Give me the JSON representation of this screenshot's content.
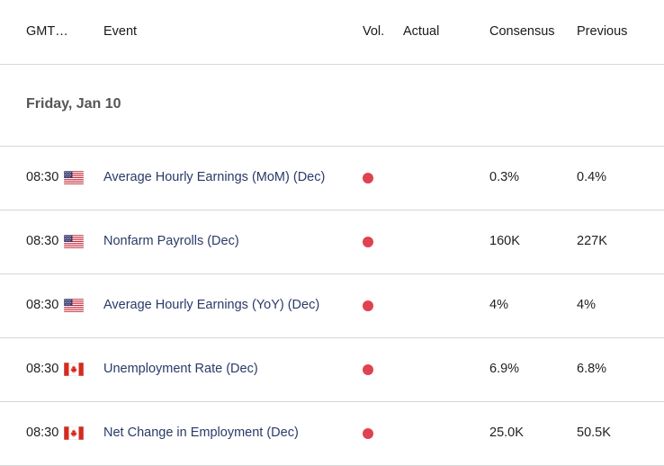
{
  "header": {
    "time": "GMT…",
    "event": "Event",
    "vol": "Vol.",
    "actual": "Actual",
    "consensus": "Consensus",
    "previous": "Previous"
  },
  "day_label": "Friday, Jan 10",
  "colors": {
    "volatility_high": "#e0424f",
    "event_link": "#2b3a67"
  },
  "events": [
    {
      "time": "08:30",
      "flag": "us-flag-icon",
      "event": "Average Hourly Earnings (MoM) (Dec)",
      "vol": "high",
      "actual": "",
      "consensus": "0.3%",
      "previous": "0.4%"
    },
    {
      "time": "08:30",
      "flag": "us-flag-icon",
      "event": "Nonfarm Payrolls (Dec)",
      "vol": "high",
      "actual": "",
      "consensus": "160K",
      "previous": "227K"
    },
    {
      "time": "08:30",
      "flag": "us-flag-icon",
      "event": "Average Hourly Earnings (YoY) (Dec)",
      "vol": "high",
      "actual": "",
      "consensus": "4%",
      "previous": "4%"
    },
    {
      "time": "08:30",
      "flag": "canada-flag-icon",
      "event": "Unemployment Rate (Dec)",
      "vol": "high",
      "actual": "",
      "consensus": "6.9%",
      "previous": "6.8%"
    },
    {
      "time": "08:30",
      "flag": "canada-flag-icon",
      "event": "Net Change in Employment (Dec)",
      "vol": "high",
      "actual": "",
      "consensus": "25.0K",
      "previous": "50.5K"
    }
  ]
}
